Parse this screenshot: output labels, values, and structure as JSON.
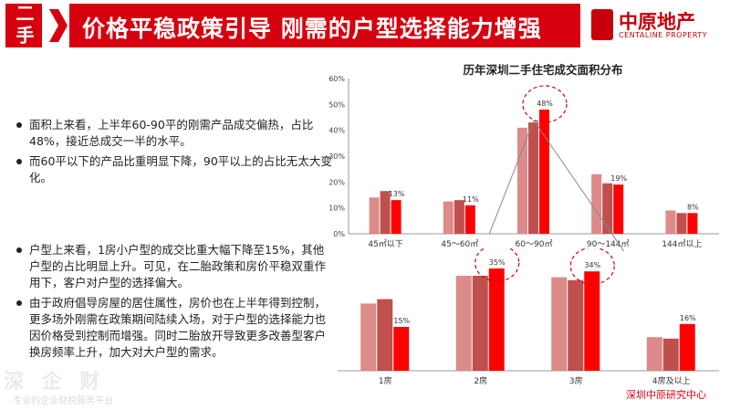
{
  "header": {
    "tag": "二手",
    "title": "价格平稳政策引导  刚需的户型选择能力增强",
    "logo_cn": "中原地产",
    "logo_en": "CENTALINE PROPERTY"
  },
  "bullets_top": [
    "面积上来看，上半年60-90平的刚需产品成交偏热，占比48%，接近总成交一半的水平。",
    "而60平以下的产品比重明显下降，90平以上的占比无太大变化。"
  ],
  "bullets_bottom": [
    "户型上来看，1房小户型的成交比重大幅下降至15%，其他户型的占比明显上升。可见，在二胎政策和房价平稳双重作用下，客户对户型的选择偏大。",
    "由于政府倡导房屋的居住属性，房价也在上半年得到控制，更多场外刚需在政策期间陆续入场，对于户型的选择能力也因价格受到控制而增强。同时二胎放开导致更多改善型客户换房频率上升，加大对大户型的需求。"
  ],
  "source": "深圳中原研究中心",
  "watermark": "深 企 财",
  "watermark2": "专业的企业财税服务平台",
  "colors": {
    "accent": "#d7000f",
    "light": "#dc8a8a",
    "mid": "#c0504d",
    "dark": "#ff0000"
  },
  "chart_data": [
    {
      "type": "bar",
      "title": "历年深圳二手住宅成交面积分布",
      "categories": [
        "45㎡以下",
        "45～60㎡",
        "60～90㎡",
        "90～144㎡",
        "144㎡以上"
      ],
      "ylim": [
        0,
        60
      ],
      "yticks": [
        "0%",
        "10%",
        "20%",
        "30%",
        "40%",
        "50%",
        "60%"
      ],
      "series": [
        {
          "values": [
            14,
            12.5,
            41,
            23,
            9
          ]
        },
        {
          "values": [
            16.5,
            13,
            43,
            19.5,
            8
          ]
        },
        {
          "values": [
            13,
            11,
            48,
            19,
            8
          ]
        }
      ],
      "labels": [
        "13%",
        "11%",
        "48%",
        "19%",
        "8%"
      ]
    },
    {
      "type": "bar",
      "categories": [
        "1房",
        "2房",
        "3房",
        "4房及以上"
      ],
      "ylim": [
        0,
        40
      ],
      "series": [
        {
          "values": [
            23,
            32.5,
            32,
            11.5
          ]
        },
        {
          "values": [
            24.5,
            32.5,
            31,
            11
          ]
        },
        {
          "values": [
            15,
            35,
            34,
            16
          ]
        }
      ],
      "labels": [
        "15%",
        "35%",
        "34%",
        "16%"
      ]
    }
  ]
}
